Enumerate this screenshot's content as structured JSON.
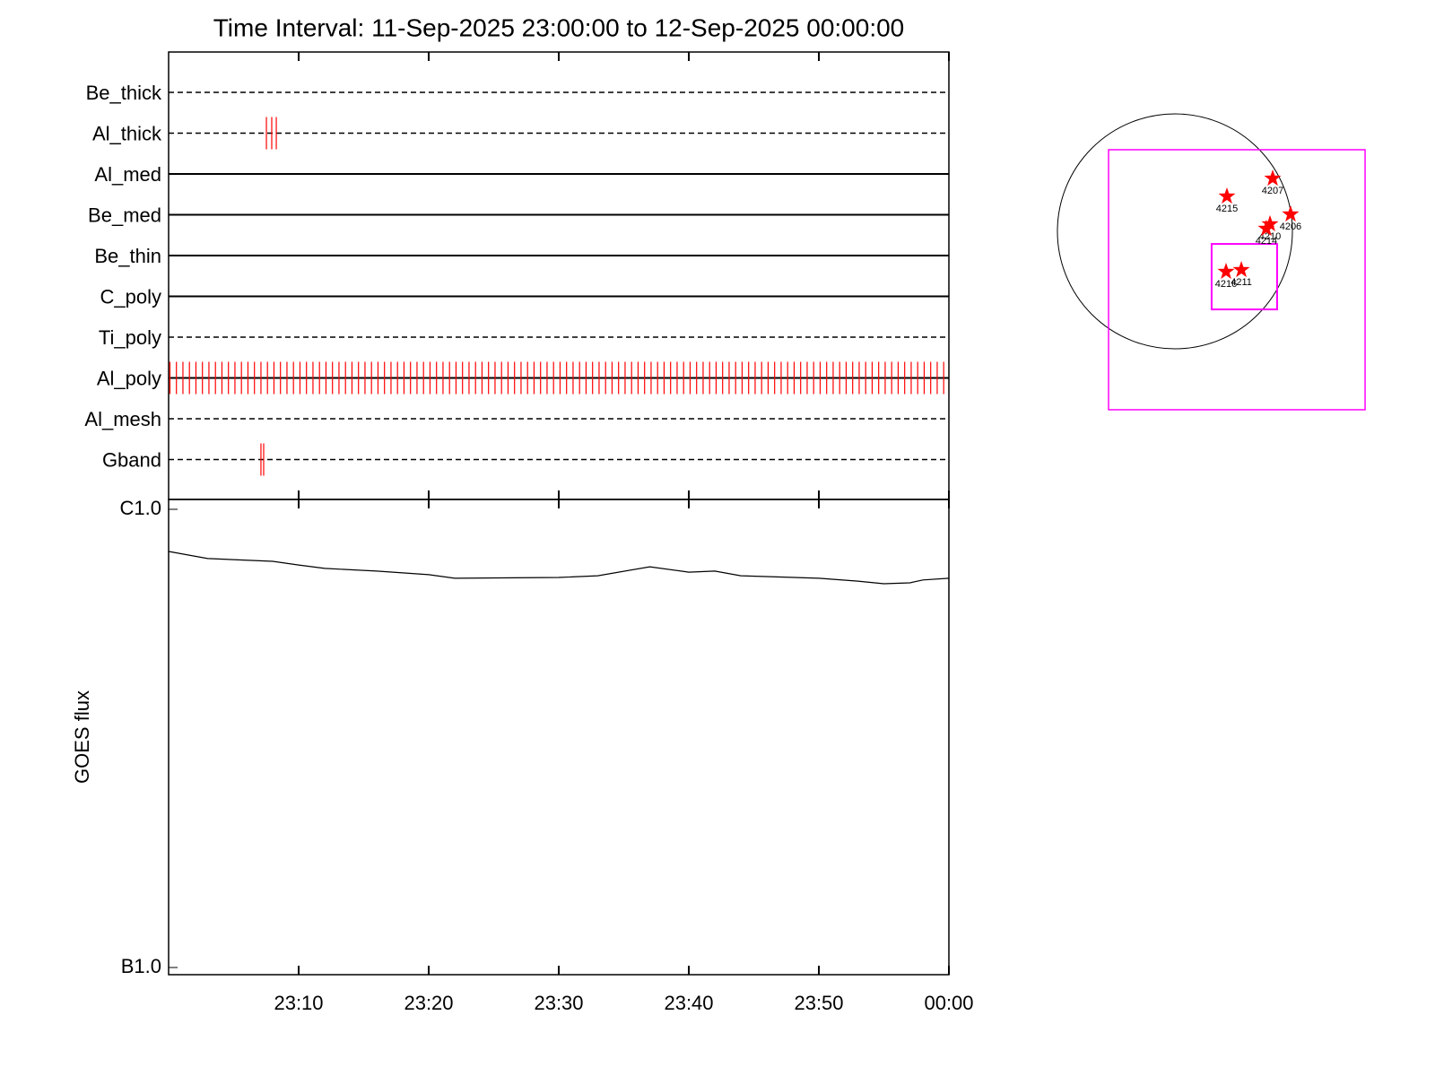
{
  "chart_data": [
    {
      "type": "timeline",
      "title": "Time Interval: 11-Sep-2025 23:00:00 to 12-Sep-2025 00:00:00",
      "categories": [
        "Be_thick",
        "Al_thick",
        "Al_med",
        "Be_med",
        "Be_thin",
        "C_poly",
        "Ti_poly",
        "Al_poly",
        "Al_mesh",
        "Gband"
      ],
      "line_styles": [
        "dashed",
        "dashed",
        "solid",
        "solid",
        "solid",
        "solid",
        "dashed",
        "solid",
        "dashed",
        "dashed"
      ],
      "events": [
        [],
        [
          7.52,
          7.93,
          8.28
        ],
        [],
        [],
        [],
        [],
        [],
        [
          0.1,
          0.6,
          1.1,
          1.6,
          2.1,
          2.6,
          3.1,
          3.6,
          4.1,
          4.6,
          5.1,
          5.6,
          6.1,
          6.6,
          7.1,
          7.6,
          8.1,
          8.6,
          9.1,
          9.6,
          10.1,
          10.6,
          11.1,
          11.6,
          12.1,
          12.6,
          13.1,
          13.6,
          14.1,
          14.6,
          15.1,
          15.6,
          16.1,
          16.6,
          17.1,
          17.6,
          18.1,
          18.6,
          19.1,
          19.6,
          20.1,
          20.6,
          21.1,
          21.6,
          22.1,
          22.6,
          23.1,
          23.6,
          24.1,
          24.6,
          25.1,
          25.6,
          26.1,
          26.6,
          27.1,
          27.6,
          28.1,
          28.6,
          29.1,
          29.6,
          30.1,
          30.6,
          31.1,
          31.6,
          32.1,
          32.6,
          33.1,
          33.6,
          34.1,
          34.6,
          35.1,
          35.6,
          36.1,
          36.6,
          37.1,
          37.6,
          38.1,
          38.6,
          39.1,
          39.6,
          40.1,
          40.6,
          41.1,
          41.6,
          42.1,
          42.6,
          43.1,
          43.6,
          44.1,
          44.6,
          45.1,
          45.6,
          46.1,
          46.6,
          47.1,
          47.6,
          48.1,
          48.6,
          49.1,
          49.6,
          50.1,
          50.6,
          51.1,
          51.6,
          52.1,
          52.6,
          53.1,
          53.6,
          54.1,
          54.6,
          55.1,
          55.6,
          56.1,
          56.6,
          57.1,
          57.6,
          58.1,
          58.6,
          59.1,
          59.6
        ],
        [],
        [
          7.1,
          7.31
        ]
      ],
      "color": "#ff0000",
      "xlim": [
        0,
        60
      ]
    },
    {
      "type": "line",
      "ylabel": "GOES flux",
      "x": [
        0,
        3,
        8,
        10,
        12,
        16,
        20,
        22,
        30,
        33,
        37,
        40,
        42,
        44,
        50,
        53,
        55,
        57,
        58,
        60
      ],
      "values": [
        8.09e-07,
        7.81e-07,
        7.7e-07,
        7.56e-07,
        7.43e-07,
        7.33e-07,
        7.2e-07,
        7.07e-07,
        7.1e-07,
        7.16e-07,
        7.49e-07,
        7.29e-07,
        7.33e-07,
        7.16e-07,
        7.07e-07,
        6.97e-07,
        6.88e-07,
        6.91e-07,
        7.01e-07,
        7.07e-07
      ],
      "color": "#000000",
      "xlim": [
        0,
        60
      ],
      "xticks": [
        {
          "value": 10,
          "label": "23:10"
        },
        {
          "value": 20,
          "label": "23:20"
        },
        {
          "value": 30,
          "label": "23:30"
        },
        {
          "value": 40,
          "label": "23:40"
        },
        {
          "value": 50,
          "label": "23:50"
        },
        {
          "value": 60,
          "label": "00:00"
        }
      ],
      "ylim": [
        1e-07,
        1e-06
      ],
      "yticks": [
        {
          "value": 1e-06,
          "label": "C1.0"
        },
        {
          "value": 1e-07,
          "label": "B1.0"
        }
      ],
      "log_y": true
    },
    {
      "type": "scatter",
      "labels": [
        "4207",
        "4215",
        "4206",
        "4210",
        "4214",
        "4216",
        "4211"
      ],
      "x": [
        799,
        425,
        945,
        777,
        747,
        418,
        543
      ],
      "y": [
        432,
        286,
        139,
        59,
        22,
        -330,
        -315
      ],
      "color": "#ff0000",
      "sun_radius": 960,
      "boxes": [
        {
          "xlim": [
            -542,
            1554
          ],
          "ylim": [
            -1458,
            667
          ]
        },
        {
          "xlim": [
            300,
            835
          ],
          "ylim": [
            -638,
            -103
          ]
        }
      ],
      "box_color": "#ff00ff"
    }
  ]
}
